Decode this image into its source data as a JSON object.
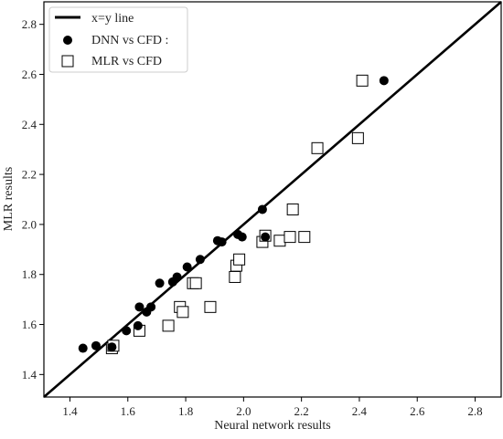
{
  "chart_data": {
    "type": "scatter",
    "xlabel": "Neural network results",
    "ylabel": "MLR results",
    "xlim": [
      1.31,
      2.89
    ],
    "ylim": [
      1.31,
      2.89
    ],
    "xticks": [
      "1.4",
      "1.6",
      "1.8",
      "2.0",
      "2.2",
      "2.4",
      "2.6",
      "2.8"
    ],
    "yticks": [
      "1.4",
      "1.6",
      "1.8",
      "2.0",
      "2.2",
      "2.4",
      "2.6",
      "2.8"
    ],
    "grid": false,
    "legend_position": "top-left",
    "reference_line": {
      "name": "x=y line",
      "x": [
        1.31,
        2.89
      ],
      "y": [
        1.31,
        2.89
      ],
      "color": "#000000"
    },
    "series": [
      {
        "name": "DNN vs CFD :",
        "marker": "filled-circle",
        "color": "#000000",
        "points": [
          [
            1.445,
            1.505
          ],
          [
            1.49,
            1.515
          ],
          [
            1.545,
            1.51
          ],
          [
            1.595,
            1.575
          ],
          [
            1.635,
            1.595
          ],
          [
            1.64,
            1.67
          ],
          [
            1.665,
            1.65
          ],
          [
            1.68,
            1.67
          ],
          [
            1.71,
            1.765
          ],
          [
            1.755,
            1.77
          ],
          [
            1.77,
            1.79
          ],
          [
            1.805,
            1.83
          ],
          [
            1.85,
            1.86
          ],
          [
            1.91,
            1.935
          ],
          [
            1.925,
            1.93
          ],
          [
            1.98,
            1.96
          ],
          [
            1.995,
            1.95
          ],
          [
            2.065,
            2.06
          ],
          [
            2.075,
            1.95
          ],
          [
            2.485,
            2.575
          ]
        ]
      },
      {
        "name": "MLR vs CFD",
        "marker": "open-square",
        "color": "#000000",
        "points": [
          [
            1.545,
            1.505
          ],
          [
            1.55,
            1.515
          ],
          [
            1.64,
            1.575
          ],
          [
            1.74,
            1.595
          ],
          [
            1.78,
            1.67
          ],
          [
            1.79,
            1.65
          ],
          [
            1.825,
            1.765
          ],
          [
            1.835,
            1.765
          ],
          [
            1.885,
            1.67
          ],
          [
            1.97,
            1.79
          ],
          [
            1.975,
            1.835
          ],
          [
            1.985,
            1.86
          ],
          [
            2.065,
            1.93
          ],
          [
            2.075,
            1.955
          ],
          [
            2.125,
            1.935
          ],
          [
            2.16,
            1.95
          ],
          [
            2.17,
            2.06
          ],
          [
            2.21,
            1.95
          ],
          [
            2.255,
            2.305
          ],
          [
            2.395,
            2.345
          ],
          [
            2.41,
            2.575
          ]
        ]
      }
    ]
  }
}
